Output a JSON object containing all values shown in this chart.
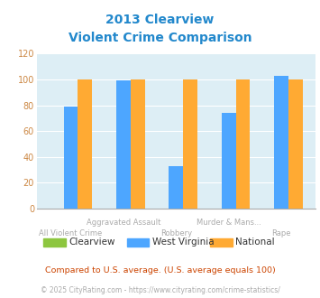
{
  "title_line1": "2013 Clearview",
  "title_line2": "Violent Crime Comparison",
  "categories": [
    "All Violent Crime",
    "Aggravated Assault",
    "Robbery",
    "Murder & Mans...",
    "Rape"
  ],
  "x_labels_top": [
    "",
    "Aggravated Assault",
    "",
    "Murder & Mans...",
    ""
  ],
  "x_labels_bot": [
    "All Violent Crime",
    "",
    "Robbery",
    "",
    "Rape"
  ],
  "clearview_values": [
    0,
    0,
    0,
    0,
    0
  ],
  "wv_values": [
    79,
    99,
    33,
    74,
    103
  ],
  "national_values": [
    100,
    100,
    100,
    100,
    100
  ],
  "clearview_color": "#8dc63f",
  "wv_color": "#4da6ff",
  "national_color": "#ffaa33",
  "bg_color": "#ddeef5",
  "ylim": [
    0,
    120
  ],
  "yticks": [
    0,
    20,
    40,
    60,
    80,
    100,
    120
  ],
  "legend_labels": [
    "Clearview",
    "West Virginia",
    "National"
  ],
  "footnote1": "Compared to U.S. average. (U.S. average equals 100)",
  "footnote2": "© 2025 CityRating.com - https://www.cityrating.com/crime-statistics/",
  "title_color": "#2288cc",
  "footnote1_color": "#cc4400",
  "footnote2_color": "#aaaaaa",
  "ytick_color": "#cc8844",
  "xlabel_color": "#aaaaaa"
}
